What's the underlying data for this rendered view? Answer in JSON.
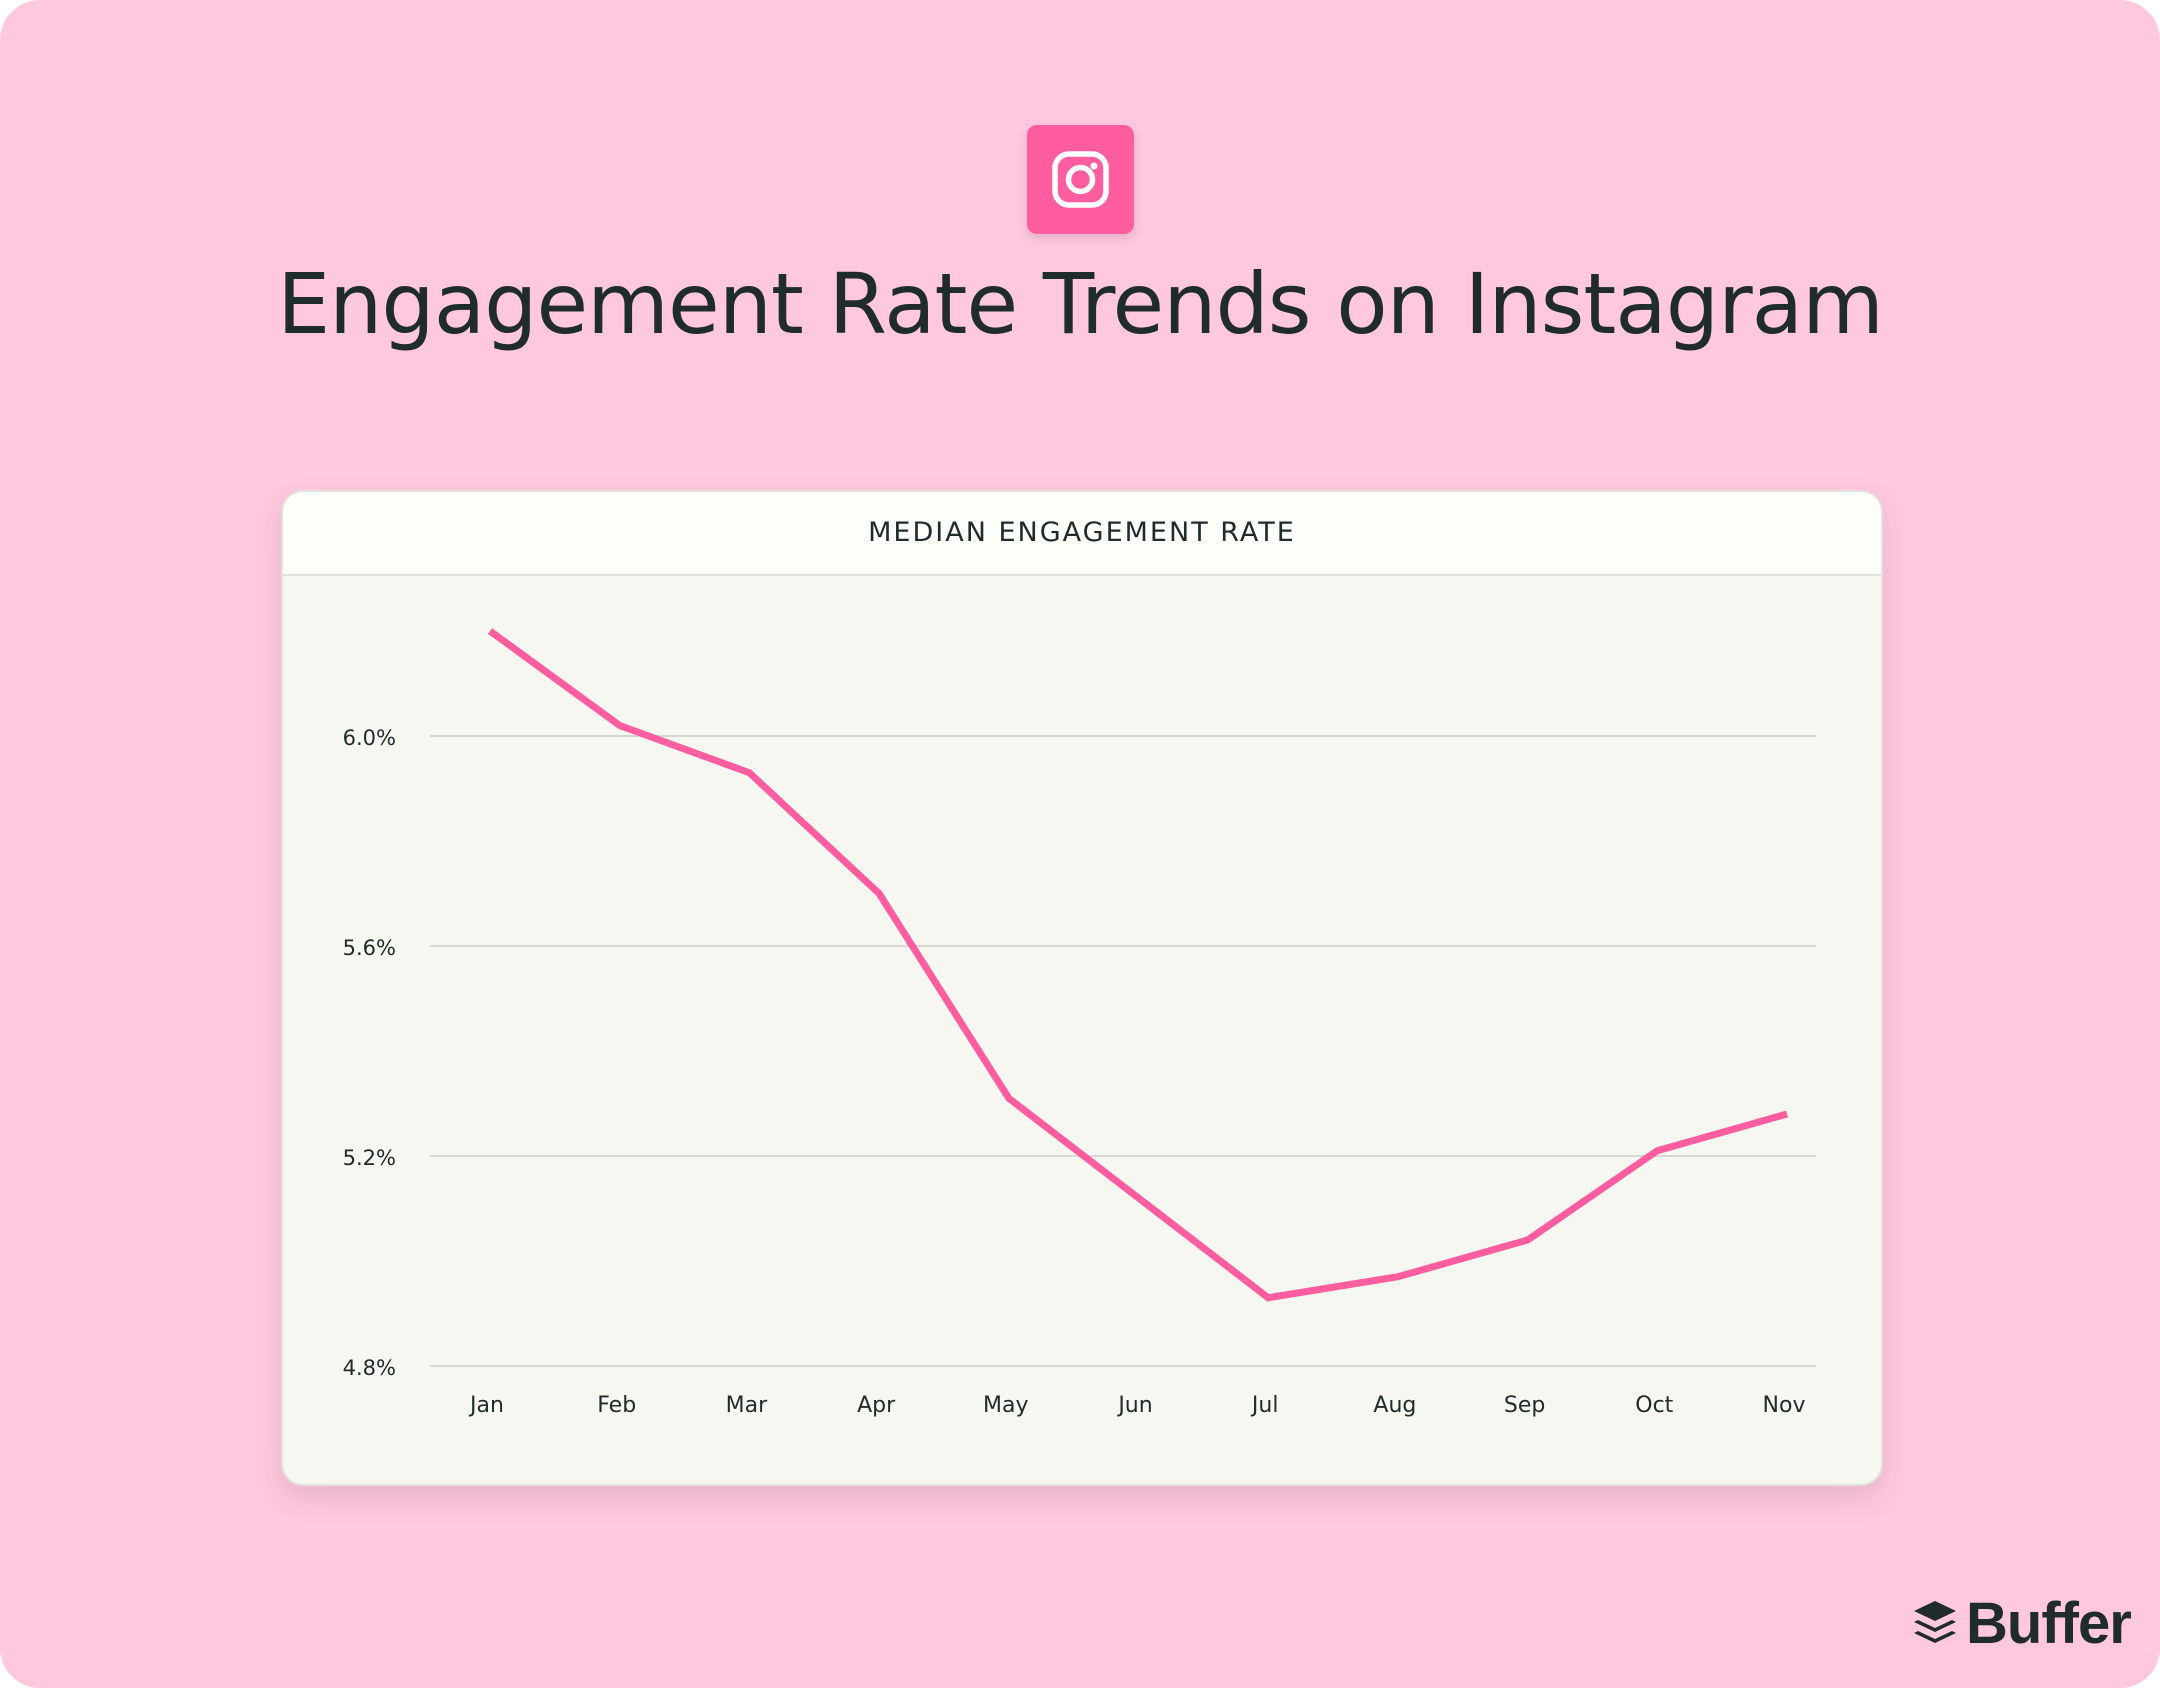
{
  "header": {
    "title": "Engagement Rate Trends on Instagram",
    "icon": "instagram-icon"
  },
  "brand": {
    "name": "Buffer",
    "icon": "buffer-layers-icon"
  },
  "colors": {
    "background": "#ffc8df",
    "accent": "#fe5e9f",
    "line": "#fe5e9f",
    "text": "#202b2b"
  },
  "chart_data": {
    "type": "line",
    "title": "MEDIAN ENGAGEMENT RATE",
    "xlabel": "",
    "ylabel": "",
    "categories": [
      "Jan",
      "Feb",
      "Mar",
      "Apr",
      "May",
      "Jun",
      "Jul",
      "Aug",
      "Sep",
      "Oct",
      "Nov"
    ],
    "series": [
      {
        "values": [
          6.2,
          6.02,
          5.93,
          5.7,
          5.31,
          5.12,
          4.93,
          4.97,
          5.04,
          5.21,
          5.28
        ]
      }
    ],
    "yticks": [
      4.8,
      5.2,
      5.6,
      6.0
    ],
    "ytick_labels": [
      "4.8%",
      "5.2%",
      "5.6%",
      "6.0%"
    ],
    "ylim": [
      4.8,
      6.2
    ],
    "grid": "horizontal",
    "legend": "none"
  }
}
